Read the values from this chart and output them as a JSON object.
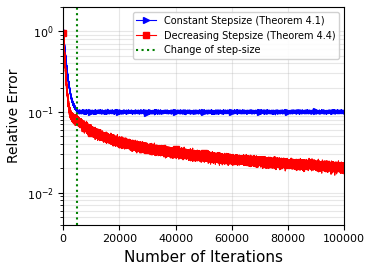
{
  "title": "",
  "xlabel": "Number of Iterations",
  "ylabel": "Relative Error",
  "xlim": [
    0,
    100000
  ],
  "ylim_log": [
    0.004,
    2.0
  ],
  "vline_x": 5000,
  "n_iterations": 100000,
  "constant_start": 1.0,
  "constant_level": 0.1,
  "constant_noise": 0.018,
  "decreasing_start": 1.0,
  "seed_constant": 42,
  "seed_decreasing": 123,
  "blue_color": "#0000ff",
  "red_color": "#ff0000",
  "green_color": "#008000",
  "marker_interval_red": 10000,
  "legend_labels": [
    "Constant Stepsize (Theorem 4.1)",
    "Decreasing Stepsize (Theorem 4.4)",
    "Change of step-size"
  ],
  "vline_label": "Change of step-size",
  "blue_marker": ">",
  "red_marker": "s",
  "marker_size": 5,
  "figsize": [
    3.72,
    2.72
  ],
  "dpi": 100
}
